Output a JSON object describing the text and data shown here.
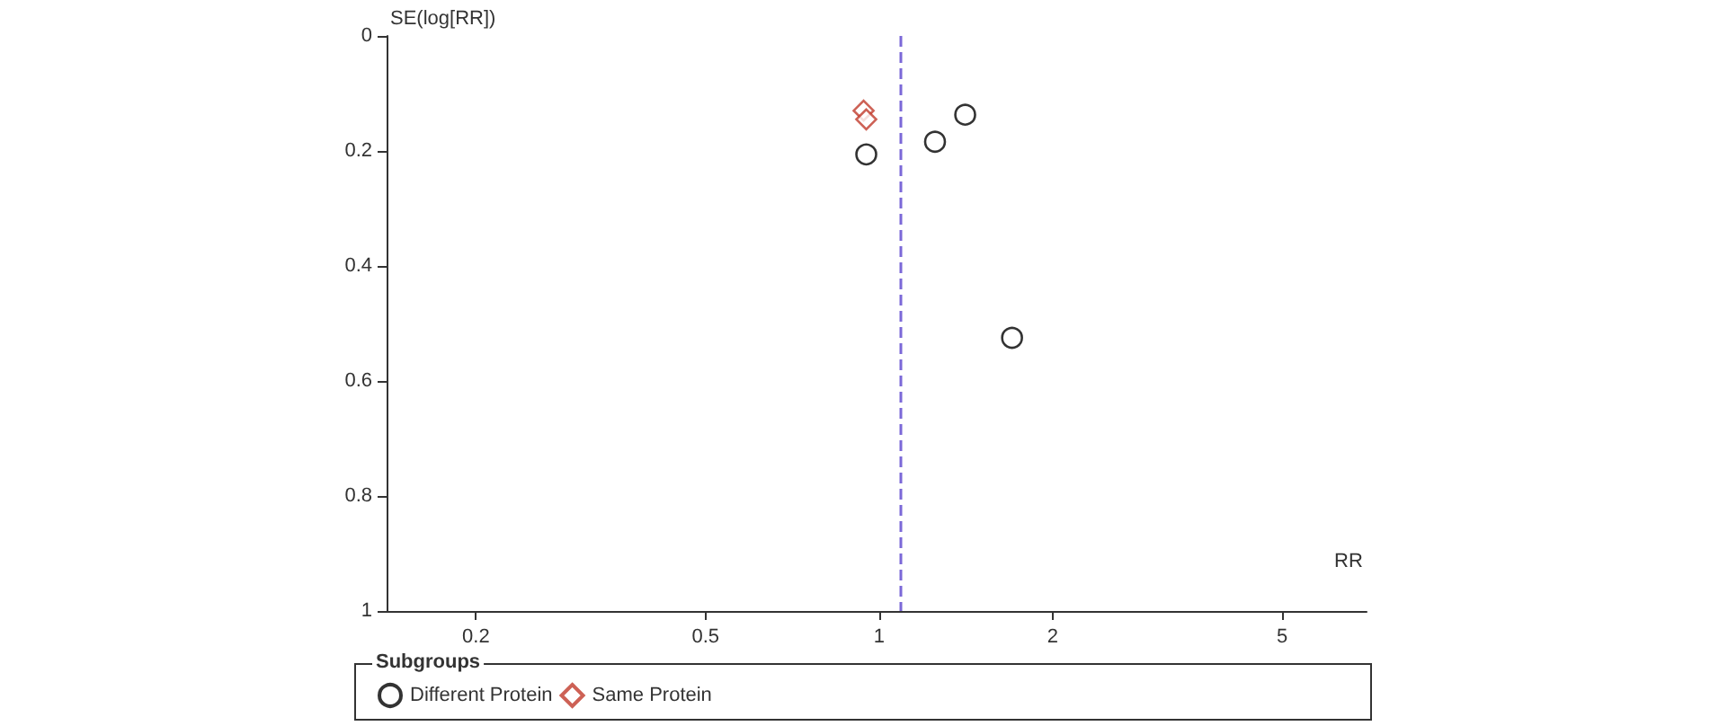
{
  "chart_data": {
    "type": "scatter",
    "xlabel": "RR",
    "ylabel": "SE(log[RR])",
    "legend_title": "Subgroups",
    "log": "x",
    "grid": false,
    "legend": "bottom",
    "xlim": [
      0.14,
      7
    ],
    "xticks": [
      0.2,
      0.5,
      1,
      2,
      5
    ],
    "ylim": [
      1,
      0
    ],
    "yticks": [
      0,
      0.2,
      0.4,
      0.6,
      0.8,
      1
    ],
    "series": [
      {
        "name": "Different Protein",
        "color": "#000000",
        "marker": "circle",
        "x": [
          0.95,
          1.25,
          1.41,
          1.7
        ],
        "values": [
          0.206,
          0.184,
          0.137,
          0.525
        ]
      },
      {
        "name": "Same Protein",
        "color": "#c0392b",
        "marker": "diamond",
        "x": [
          0.94,
          0.95
        ],
        "values": [
          0.13,
          0.145
        ]
      }
    ],
    "ref_lines": [
      {
        "axis": "x",
        "value": 1.09,
        "color": "#7b68d8",
        "line_style": "dashed"
      }
    ]
  }
}
